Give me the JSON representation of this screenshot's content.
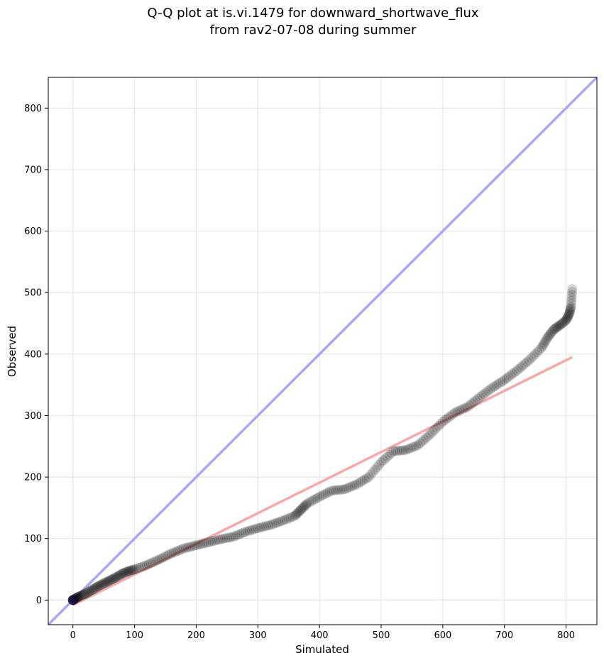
{
  "chart_data": {
    "type": "scatter",
    "title": "Q-Q plot at is.vi.1479 for downward_shortwave_flux",
    "subtitle": "from rav2-07-08 during summer",
    "xlabel": "Simulated",
    "ylabel": "Observed",
    "xlim": [
      -40,
      850
    ],
    "ylim": [
      -40,
      850
    ],
    "xticks": [
      0,
      100,
      200,
      300,
      400,
      500,
      600,
      700,
      800
    ],
    "yticks": [
      0,
      100,
      200,
      300,
      400,
      500,
      600,
      700,
      800
    ],
    "xtick_labels": [
      "0",
      "100",
      "200",
      "300",
      "400",
      "500",
      "600",
      "700",
      "800"
    ],
    "ytick_labels": [
      "0",
      "100",
      "200",
      "300",
      "400",
      "500",
      "600",
      "700",
      "800"
    ],
    "grid": true,
    "one_to_one_line": {
      "x": [
        -40,
        850
      ],
      "y": [
        -40,
        850
      ],
      "color": "#a8a8f5"
    },
    "regression_line": {
      "x": [
        0,
        810
      ],
      "y": [
        -8,
        395
      ],
      "color": "#f7a8a8"
    },
    "quantile_curve": {
      "x": [
        0,
        5,
        10,
        20,
        30,
        40,
        50,
        60,
        70,
        80,
        90,
        100,
        120,
        140,
        160,
        180,
        200,
        220,
        240,
        260,
        280,
        300,
        320,
        340,
        360,
        370,
        380,
        400,
        420,
        440,
        460,
        480,
        500,
        520,
        540,
        560,
        580,
        600,
        620,
        640,
        660,
        680,
        700,
        720,
        740,
        760,
        770,
        780,
        790,
        800,
        805,
        808,
        810
      ],
      "y": [
        0,
        3,
        6,
        10,
        16,
        22,
        27,
        32,
        37,
        43,
        47,
        50,
        57,
        66,
        76,
        84,
        89,
        94,
        99,
        103,
        111,
        117,
        122,
        129,
        137,
        147,
        157,
        168,
        178,
        180,
        188,
        200,
        224,
        242,
        244,
        252,
        270,
        290,
        305,
        314,
        330,
        345,
        358,
        373,
        390,
        410,
        427,
        440,
        447,
        455,
        465,
        477,
        506
      ],
      "color": "#000000",
      "opacity": 0.15
    }
  }
}
